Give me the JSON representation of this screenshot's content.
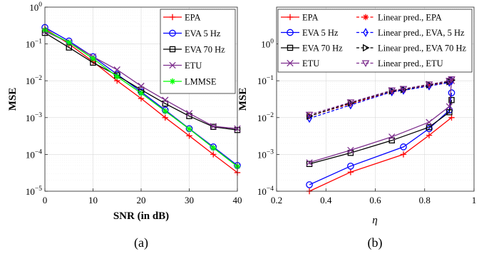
{
  "chart_data": [
    {
      "type": "line",
      "panel_caption": "(a)",
      "xlabel": "SNR (in dB)",
      "ylabel": "MSE",
      "xlim": [
        0,
        40
      ],
      "ylim": [
        1e-05,
        1
      ],
      "yscale": "log",
      "grid": true,
      "legend_position": "top-right",
      "x": [
        0,
        5,
        10,
        15,
        20,
        25,
        30,
        35,
        40
      ],
      "xticks": [
        "0",
        "10",
        "20",
        "30",
        "40"
      ],
      "yticks": [
        "10^-5",
        "10^-4",
        "10^-3",
        "10^-2",
        "10^-1",
        "10^0"
      ],
      "series": [
        {
          "name": "EPA",
          "color": "#ff0000",
          "marker": "plus",
          "dash": "solid",
          "values": [
            0.26,
            0.1,
            0.033,
            0.01,
            0.0033,
            0.001,
            0.00032,
            0.0001,
            3.2e-05
          ]
        },
        {
          "name": "EVA 5 Hz",
          "color": "#0000ff",
          "marker": "circle",
          "dash": "solid",
          "values": [
            0.28,
            0.12,
            0.045,
            0.015,
            0.005,
            0.0016,
            0.0005,
            0.00016,
            5e-05
          ]
        },
        {
          "name": "EVA 70 Hz",
          "color": "#000000",
          "marker": "square",
          "dash": "solid",
          "values": [
            0.2,
            0.08,
            0.031,
            0.014,
            0.0057,
            0.0024,
            0.0011,
            0.00056,
            0.00046
          ]
        },
        {
          "name": "ETU",
          "color": "#7e2f8e",
          "marker": "x",
          "dash": "solid",
          "values": [
            0.22,
            0.11,
            0.045,
            0.02,
            0.0072,
            0.003,
            0.0013,
            0.00058,
            0.0005
          ]
        },
        {
          "name": "LMMSE",
          "color": "#00ff00",
          "marker": "asterisk",
          "dash": "solid",
          "values": [
            0.24,
            0.11,
            0.04,
            0.013,
            0.0046,
            0.0015,
            0.00049,
            0.00015,
            4.7e-05
          ]
        }
      ]
    },
    {
      "type": "line",
      "panel_caption": "(b)",
      "xlabel": "η",
      "ylabel": "MSE",
      "xlim": [
        0.2,
        1
      ],
      "ylim": [
        0.0001,
        10
      ],
      "yscale": "log",
      "grid": true,
      "legend_position": "top",
      "xticks": [
        "0.2",
        "0.4",
        "0.6",
        "0.8",
        "1"
      ],
      "yticks": [
        "10^-4",
        "10^-3",
        "10^-2",
        "10^-1",
        "10^0"
      ],
      "series": [
        {
          "name": "EPA",
          "color": "#ff0000",
          "marker": "plus",
          "dash": "solid",
          "x": [
            0.333,
            0.5,
            0.714,
            0.818,
            0.909
          ],
          "values": [
            0.0001,
            0.00033,
            0.001,
            0.0033,
            0.01
          ]
        },
        {
          "name": "EVA 5 Hz",
          "color": "#0000ff",
          "marker": "circle",
          "dash": "solid",
          "x": [
            0.333,
            0.5,
            0.714,
            0.818,
            0.9,
            0.909
          ],
          "values": [
            0.00015,
            0.00048,
            0.0016,
            0.005,
            0.016,
            0.047
          ]
        },
        {
          "name": "EVA 70 Hz",
          "color": "#000000",
          "marker": "square",
          "dash": "solid",
          "x": [
            0.333,
            0.5,
            0.667,
            0.818,
            0.9,
            0.909
          ],
          "values": [
            0.00055,
            0.0011,
            0.0024,
            0.0055,
            0.014,
            0.03
          ]
        },
        {
          "name": "ETU",
          "color": "#7e2f8e",
          "marker": "x",
          "dash": "solid",
          "x": [
            0.333,
            0.5,
            0.667,
            0.818,
            0.9,
            0.909
          ],
          "values": [
            0.0006,
            0.0013,
            0.003,
            0.0075,
            0.02,
            0.1
          ]
        },
        {
          "name": "Linear pred., EPA",
          "color": "#ff0000",
          "marker": "asterisk",
          "dash": "dashed",
          "x": [
            0.333,
            0.5,
            0.667,
            0.714,
            0.818,
            0.9,
            0.909
          ],
          "values": [
            0.011,
            0.024,
            0.05,
            0.056,
            0.075,
            0.09,
            0.1
          ]
        },
        {
          "name": "Linear pred., EVA, 5 Hz",
          "color": "#0000ff",
          "marker": "diamond",
          "dash": "dashed",
          "x": [
            0.333,
            0.5,
            0.667,
            0.714,
            0.818,
            0.9,
            0.909
          ],
          "values": [
            0.0095,
            0.022,
            0.05,
            0.055,
            0.072,
            0.09,
            0.1
          ]
        },
        {
          "name": "Linear pred., EVA 70 Hz",
          "color": "#000000",
          "marker": "triangle-right",
          "dash": "dashed",
          "x": [
            0.333,
            0.5,
            0.667,
            0.714,
            0.818,
            0.9,
            0.909
          ],
          "values": [
            0.011,
            0.025,
            0.053,
            0.058,
            0.078,
            0.095,
            0.105
          ]
        },
        {
          "name": "Linear pred., ETU",
          "color": "#7e2f8e",
          "marker": "triangle-down",
          "dash": "dashed",
          "x": [
            0.333,
            0.5,
            0.667,
            0.714,
            0.818,
            0.9,
            0.909
          ],
          "values": [
            0.012,
            0.026,
            0.055,
            0.06,
            0.08,
            0.1,
            0.11
          ]
        }
      ]
    }
  ]
}
